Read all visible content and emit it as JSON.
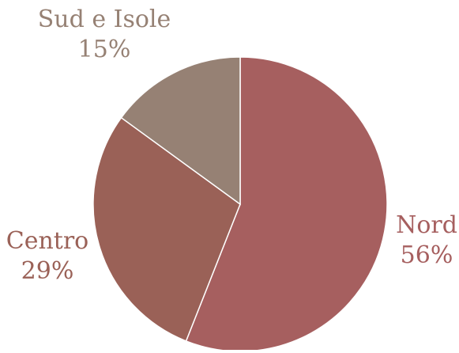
{
  "chart_data": {
    "type": "pie",
    "title": "",
    "start": "12 o'clock",
    "direction": "clockwise",
    "slices": [
      {
        "name": "Nord",
        "value": 56,
        "display": "56%",
        "color": "#a65f5f",
        "label_color": "#a65f5f"
      },
      {
        "name": "Centro",
        "value": 29,
        "display": "29%",
        "color": "#9a6157",
        "label_color": "#9a6157"
      },
      {
        "name": "Sud e Isole",
        "value": 15,
        "display": "15%",
        "color": "#968174",
        "label_color": "#968174"
      }
    ],
    "legend": "none"
  }
}
